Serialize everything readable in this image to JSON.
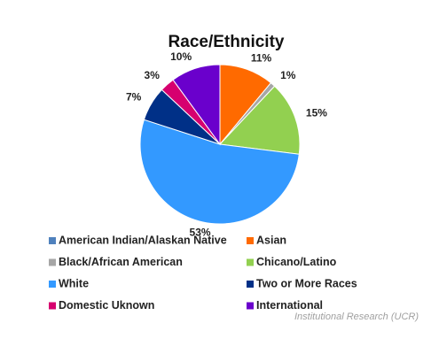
{
  "chart_data": {
    "type": "pie",
    "title": "Race/Ethnicity",
    "categories": [
      "American Indian/Alaskan Native",
      "Asian",
      "Black/African American",
      "Chicano/Latino",
      "White",
      "Two or More Races",
      "Domestic Uknown",
      "International"
    ],
    "values": [
      0,
      11,
      1,
      15,
      53,
      7,
      3,
      10
    ],
    "value_labels": [
      null,
      "11%",
      "1%",
      "15%",
      "53%",
      "7%",
      "3%",
      "10%"
    ],
    "colors": [
      "#4f81bd",
      "#ff6a00",
      "#a6a6a6",
      "#92d050",
      "#3399ff",
      "#003087",
      "#d6006f",
      "#6a00cc"
    ],
    "legend": "bottom",
    "source": "Institutional Research (UCR)"
  }
}
